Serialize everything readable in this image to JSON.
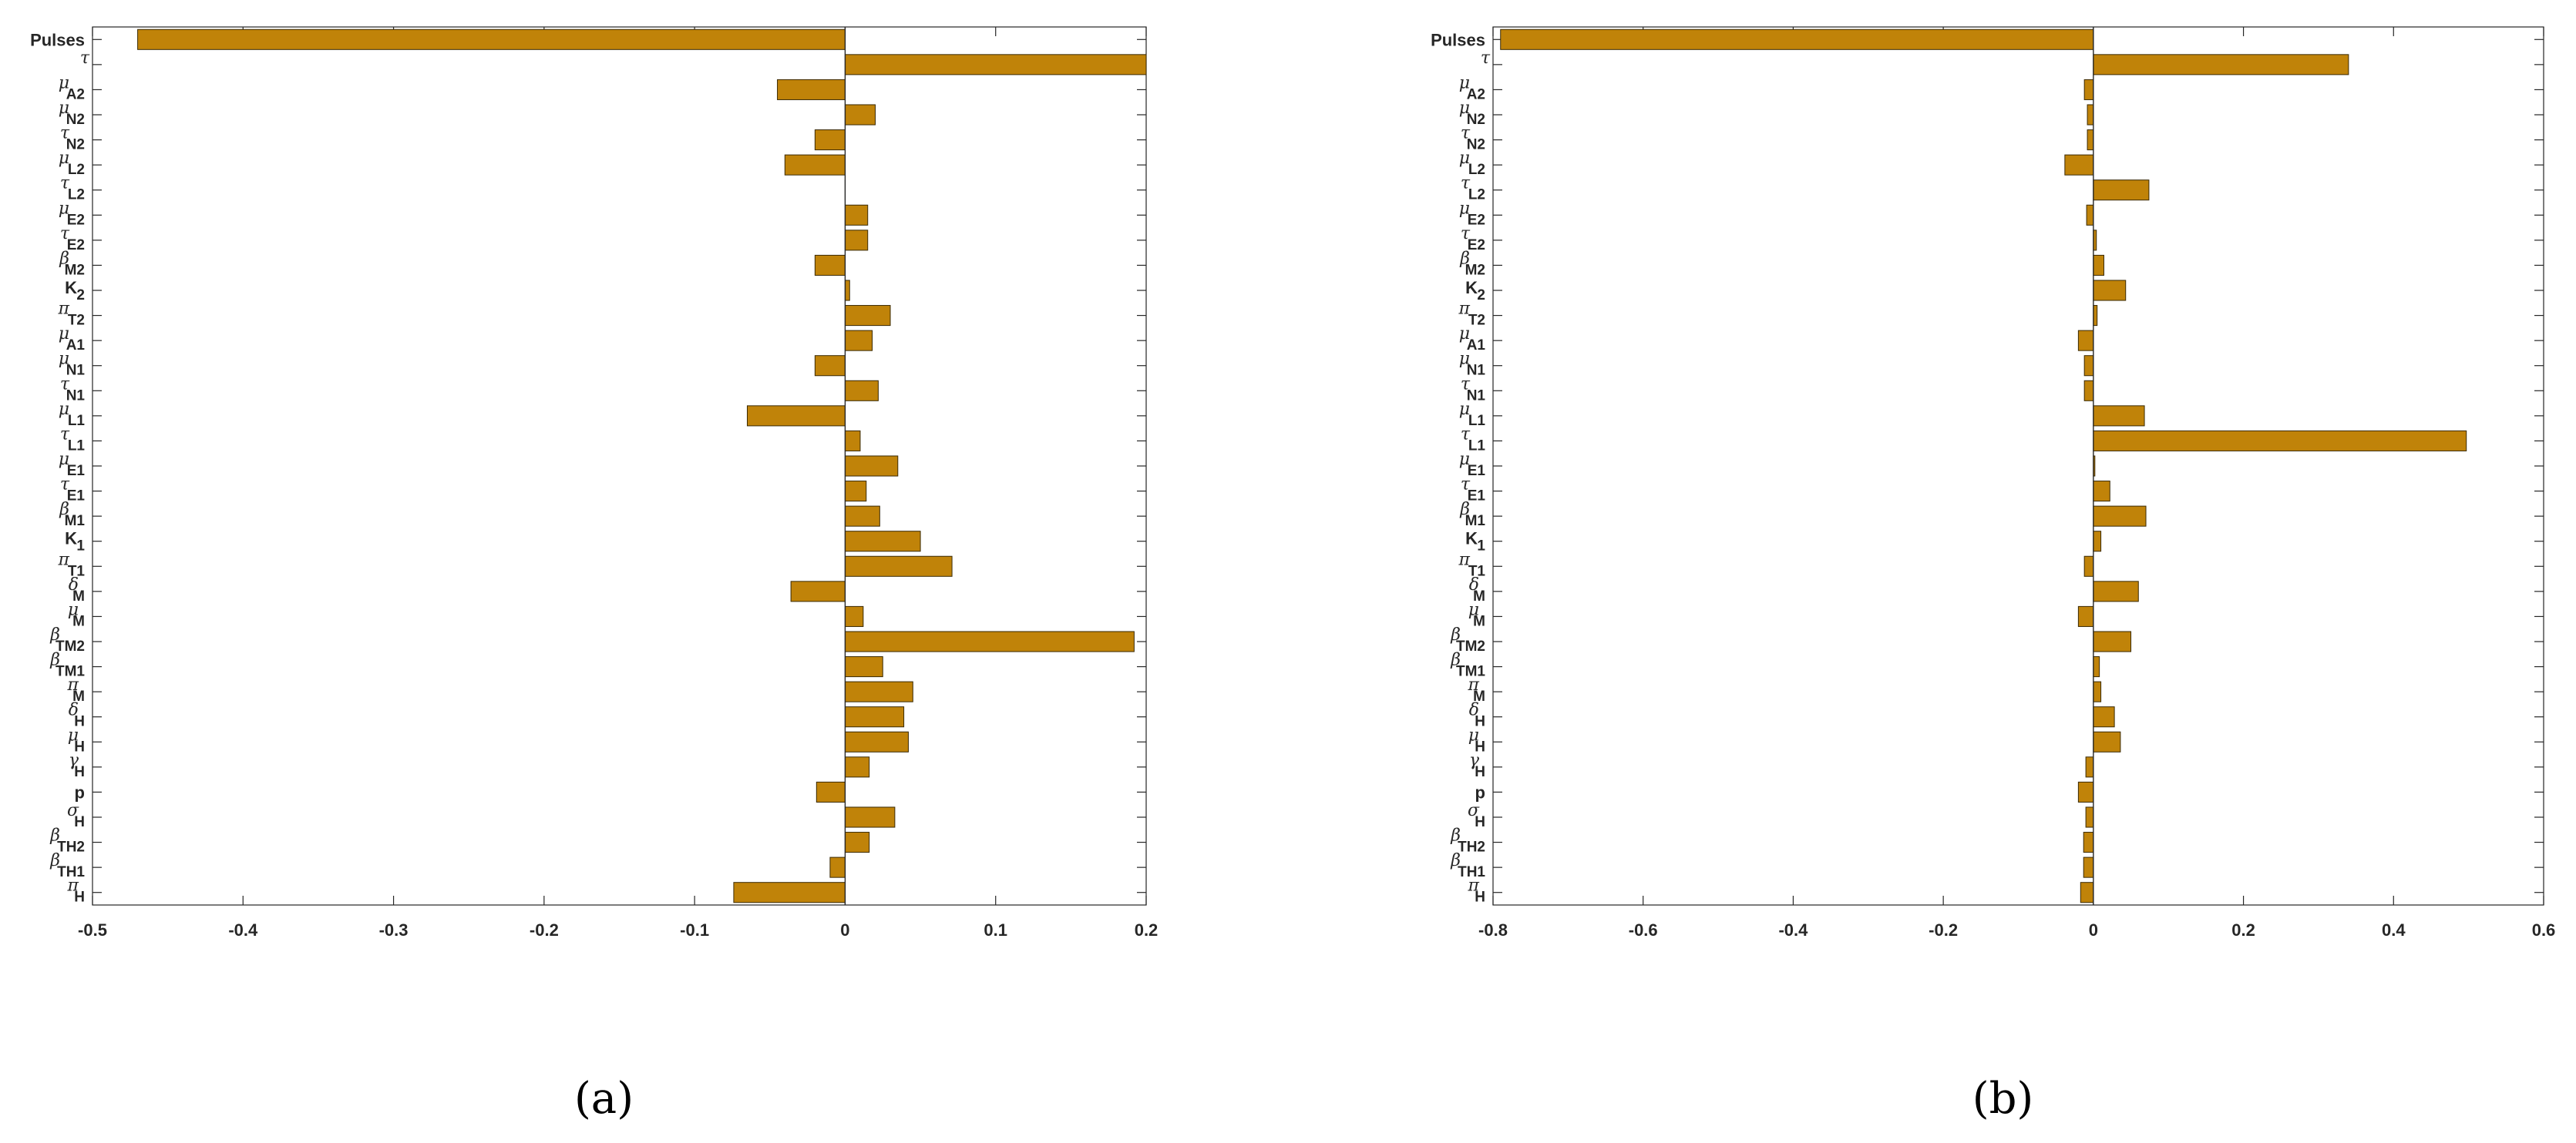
{
  "colors": {
    "bar_fill": "#C08309",
    "bar_stroke": "#3a2a05",
    "axis": "#262626"
  },
  "categories": [
    {
      "sym": "",
      "sub": "",
      "plain": "Pulses"
    },
    {
      "sym": "τ",
      "sub": ""
    },
    {
      "sym": "μ",
      "sub": "A2"
    },
    {
      "sym": "μ",
      "sub": "N2"
    },
    {
      "sym": "τ",
      "sub": "N2"
    },
    {
      "sym": "μ",
      "sub": "L2"
    },
    {
      "sym": "τ",
      "sub": "L2"
    },
    {
      "sym": "μ",
      "sub": "E2"
    },
    {
      "sym": "τ",
      "sub": "E2"
    },
    {
      "sym": "β",
      "sub": "M2"
    },
    {
      "sym": "",
      "sub": "2",
      "plain": "K"
    },
    {
      "sym": "π",
      "sub": "T2"
    },
    {
      "sym": "μ",
      "sub": "A1"
    },
    {
      "sym": "μ",
      "sub": "N1"
    },
    {
      "sym": "τ",
      "sub": "N1"
    },
    {
      "sym": "μ",
      "sub": "L1"
    },
    {
      "sym": "τ",
      "sub": "L1"
    },
    {
      "sym": "μ",
      "sub": "E1"
    },
    {
      "sym": "τ",
      "sub": "E1"
    },
    {
      "sym": "β",
      "sub": "M1"
    },
    {
      "sym": "",
      "sub": "1",
      "plain": "K"
    },
    {
      "sym": "π",
      "sub": "T1"
    },
    {
      "sym": "δ",
      "sub": "M"
    },
    {
      "sym": "μ",
      "sub": "M"
    },
    {
      "sym": "β",
      "sub": "TM2"
    },
    {
      "sym": "β",
      "sub": "TM1"
    },
    {
      "sym": "π",
      "sub": "M"
    },
    {
      "sym": "δ",
      "sub": "H"
    },
    {
      "sym": "μ",
      "sub": "H"
    },
    {
      "sym": "γ",
      "sub": "H"
    },
    {
      "sym": "",
      "sub": "",
      "plain": "p"
    },
    {
      "sym": "σ",
      "sub": "H"
    },
    {
      "sym": "β",
      "sub": "TH2"
    },
    {
      "sym": "β",
      "sub": "TH1"
    },
    {
      "sym": "π",
      "sub": "H"
    }
  ],
  "chart_data": [
    {
      "type": "bar",
      "orientation": "horizontal",
      "caption": "(a)",
      "xlim": [
        -0.5,
        0.2
      ],
      "xticks": [
        "-0.5",
        "-0.4",
        "-0.3",
        "-0.2",
        "-0.1",
        "0",
        "0.1",
        "0.2"
      ],
      "values": [
        -0.47,
        0.2,
        -0.045,
        0.02,
        -0.02,
        -0.04,
        0.0,
        0.015,
        0.015,
        -0.02,
        0.003,
        0.03,
        0.018,
        -0.02,
        0.022,
        -0.065,
        0.01,
        0.035,
        0.014,
        0.023,
        0.05,
        0.071,
        -0.036,
        0.012,
        0.192,
        0.025,
        0.045,
        0.039,
        0.042,
        0.016,
        -0.019,
        0.033,
        0.016,
        -0.01,
        -0.074
      ]
    },
    {
      "type": "bar",
      "orientation": "horizontal",
      "caption": "(b)",
      "xlim": [
        -0.8,
        0.6
      ],
      "xticks": [
        "-0.8",
        "-0.6",
        "-0.4",
        "-0.2",
        "0",
        "0.2",
        "0.4",
        "0.6"
      ],
      "values": [
        -0.79,
        0.34,
        -0.012,
        -0.008,
        -0.008,
        -0.038,
        0.074,
        -0.009,
        0.004,
        0.014,
        0.043,
        0.005,
        -0.02,
        -0.012,
        -0.012,
        0.068,
        0.497,
        0.002,
        0.022,
        0.07,
        0.01,
        -0.012,
        0.06,
        -0.02,
        0.05,
        0.008,
        0.01,
        0.028,
        0.036,
        -0.01,
        -0.02,
        -0.01,
        -0.013,
        -0.013,
        -0.017
      ]
    }
  ]
}
